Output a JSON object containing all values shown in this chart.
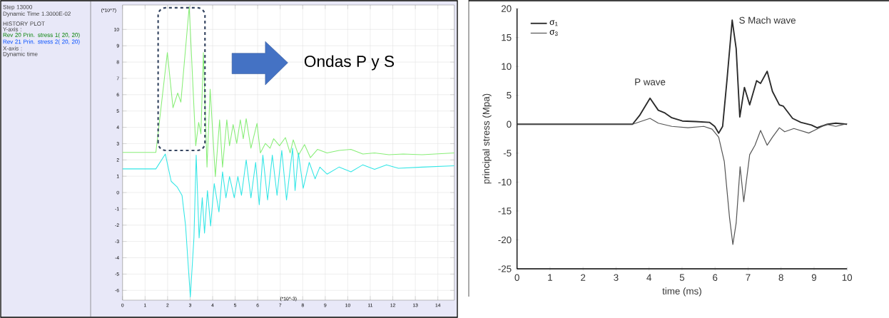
{
  "chart_data": [
    {
      "type": "other",
      "annotations": [
        "Step 13000",
        "Dynamic Time  1.3000E-02",
        "HISTORY PLOT",
        "Y-axis :",
        "Rev  20 Prin. stress 1( 20, 20)",
        "Rev  21 Prin. stress 2( 20, 20)",
        "X-axis :",
        "Dynamic time"
      ]
    },
    {
      "type": "line",
      "xlabel": "(*10^-3)",
      "ylabel": "(*10^7)",
      "grid": true,
      "xlim": [
        0,
        14.73
      ],
      "ylim": [
        -6.6,
        11.5
      ],
      "xticks": [
        0,
        1,
        2,
        3,
        4,
        5,
        6,
        7,
        8,
        9,
        10,
        11,
        12,
        13,
        14
      ],
      "yticks": [
        -6,
        -5,
        -4,
        -3,
        -2,
        -1,
        0,
        1,
        2,
        3,
        4,
        5,
        6,
        7,
        8,
        9,
        10
      ],
      "annotations": [
        "Ondas P y S"
      ],
      "series": [
        {
          "color": "#88ee77",
          "x": [
            0,
            1.48,
            1.99,
            2.24,
            2.45,
            2.59,
            2.96,
            3.25,
            3.38,
            3.48,
            3.59,
            3.75,
            3.89,
            4.12,
            4.31,
            4.44,
            4.63,
            4.75,
            4.91,
            5.07,
            5.23,
            5.36,
            5.49,
            5.7,
            5.97,
            6.12,
            6.34,
            6.55,
            6.71,
            6.97,
            7.23,
            7.44,
            7.58,
            7.81,
            8.08,
            8.34,
            8.66,
            9.08,
            9.61,
            10.14,
            10.67,
            11.19,
            11.83,
            12.46,
            13.3,
            14.73
          ],
          "values": [
            2.46,
            2.46,
            8.58,
            5.2,
            6.1,
            5.54,
            11.4,
            2.87,
            4.3,
            3.6,
            8.58,
            1.56,
            6.34,
            0.98,
            4.46,
            1.56,
            4.46,
            2.87,
            4.17,
            3.01,
            4.46,
            3.3,
            4.53,
            2.72,
            4.24,
            2.43,
            3.01,
            2.72,
            3.3,
            2.87,
            3.37,
            2.43,
            3.23,
            2.29,
            2.94,
            2.14,
            2.65,
            2.43,
            2.58,
            2.65,
            2.36,
            2.43,
            2.32,
            2.36,
            2.32,
            2.43
          ]
        },
        {
          "color": "#33e6e6",
          "x": [
            0,
            1.48,
            1.9,
            2.16,
            2.43,
            2.64,
            2.8,
            3.01,
            3.17,
            3.27,
            3.4,
            3.54,
            3.64,
            3.77,
            3.91,
            4.07,
            4.28,
            4.44,
            4.59,
            4.75,
            4.96,
            5.12,
            5.28,
            5.49,
            5.7,
            5.91,
            6.07,
            6.23,
            6.44,
            6.65,
            6.86,
            7.07,
            7.28,
            7.55,
            7.66,
            7.81,
            8.02,
            8.29,
            8.55,
            8.76,
            9.08,
            9.61,
            10.14,
            10.67,
            11.19,
            11.72,
            12.25,
            13.3,
            14.73
          ],
          "values": [
            1.45,
            1.45,
            2.36,
            0.69,
            0.33,
            -0.17,
            -2.05,
            -6.4,
            -2.78,
            2.29,
            -2.78,
            -0.32,
            -2.49,
            0.12,
            -2.05,
            0.55,
            -1.19,
            1.27,
            -0.32,
            0.98,
            -0.32,
            0.98,
            -0.17,
            2.0,
            -0.32,
            1.85,
            -0.75,
            2.29,
            -0.46,
            2.29,
            -0.17,
            2.58,
            -0.46,
            2.72,
            0.12,
            2.43,
            0.26,
            1.85,
            0.84,
            1.56,
            1.13,
            1.56,
            1.27,
            1.7,
            1.42,
            1.7,
            1.49,
            1.56,
            1.64
          ]
        }
      ]
    },
    {
      "type": "line",
      "xlabel": "time (ms)",
      "ylabel": "principal stress (Mpa)",
      "legend": "top left",
      "xlim": [
        0,
        10
      ],
      "ylim": [
        -25,
        20
      ],
      "xticks": [
        0,
        1,
        2,
        3,
        4,
        5,
        6,
        7,
        8,
        9,
        10
      ],
      "yticks": [
        -25,
        -20,
        -15,
        -10,
        -5,
        0,
        5,
        10,
        15,
        20
      ],
      "annotations": [
        {
          "text": "P wave",
          "x": 4.03,
          "y": 4.51
        },
        {
          "text": "S Mach wave",
          "x": 6.52,
          "y": 18.0
        }
      ],
      "series": [
        {
          "name": "σ$_{1}$",
          "color": "#2a2a2a",
          "x": [
            0,
            3.5,
            3.71,
            4.03,
            4.28,
            4.48,
            4.69,
            5.01,
            5.42,
            5.83,
            5.99,
            6.11,
            6.23,
            6.36,
            6.52,
            6.64,
            6.75,
            6.89,
            7.05,
            7.26,
            7.38,
            7.58,
            7.74,
            7.95,
            8.07,
            8.35,
            8.6,
            8.92,
            9.09,
            9.41,
            9.66,
            10
          ],
          "values": [
            0,
            0,
            1.49,
            4.51,
            2.42,
            1.95,
            1.12,
            0.56,
            0.47,
            0.33,
            -0.37,
            -1.53,
            -0.37,
            7.53,
            18.0,
            13.1,
            1.26,
            6.37,
            3.35,
            7.53,
            7.07,
            9.16,
            5.67,
            3.35,
            3.12,
            1.02,
            0.33,
            -0.14,
            -0.6,
            0,
            0.19,
            0
          ]
        },
        {
          "name": "σ$_{3}$",
          "color": "#555555",
          "x": [
            0,
            3.5,
            4.03,
            4.28,
            4.69,
            5.18,
            5.66,
            5.91,
            6.11,
            6.28,
            6.44,
            6.54,
            6.64,
            6.76,
            6.87,
            7.05,
            7.21,
            7.38,
            7.58,
            7.74,
            7.95,
            8.11,
            8.39,
            8.84,
            9.09,
            9.37,
            9.66,
            10
          ],
          "values": [
            0,
            0,
            1.02,
            0.19,
            -0.37,
            -0.6,
            -0.37,
            -0.84,
            -2.23,
            -6.42,
            -16.2,
            -20.8,
            -17.1,
            -7.35,
            -13.4,
            -5.26,
            -3.63,
            -1.07,
            -3.63,
            -2.23,
            -0.6,
            -1.3,
            -0.74,
            -1.53,
            -0.84,
            0,
            -0.37,
            0.1
          ]
        }
      ]
    }
  ]
}
